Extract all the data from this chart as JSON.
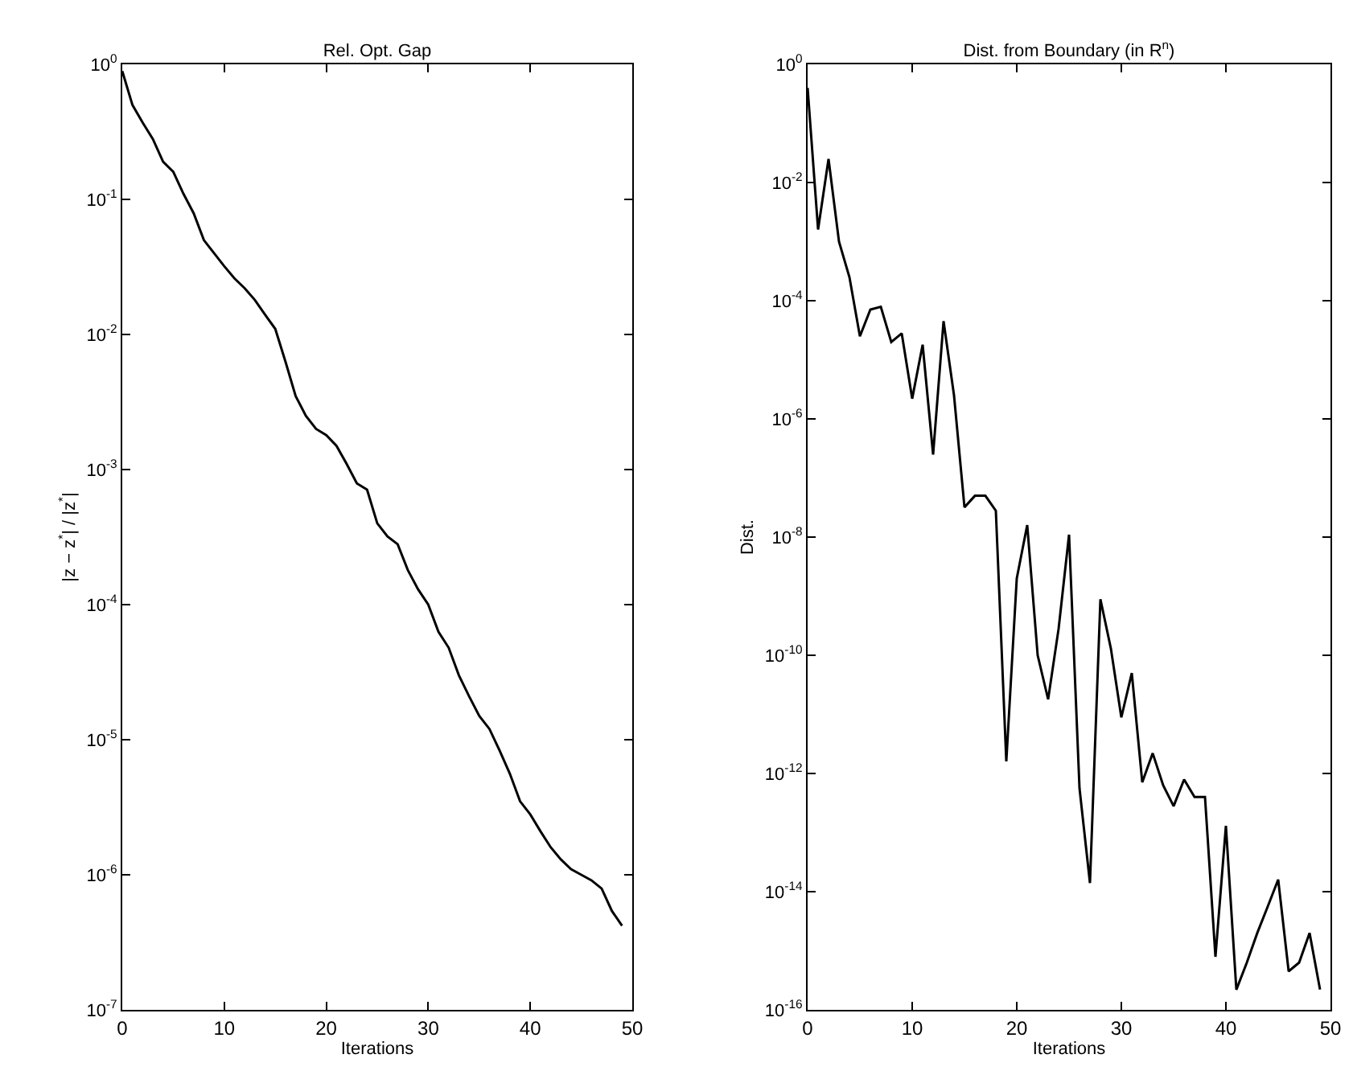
{
  "chart_data": [
    {
      "type": "line",
      "title": "Rel. Opt. Gap",
      "xlabel": "Iterations",
      "ylabel": "|z − z$^{*}$| / |z$^{*}$|",
      "log": "y",
      "grid": false,
      "marker": "none",
      "line_style": "solid",
      "x": [
        0,
        1,
        2,
        3,
        4,
        5,
        6,
        7,
        8,
        9,
        10,
        11,
        12,
        13,
        14,
        15,
        16,
        17,
        18,
        19,
        20,
        21,
        22,
        23,
        24,
        25,
        26,
        27,
        28,
        29,
        30,
        31,
        32,
        33,
        34,
        35,
        36,
        37,
        38,
        39,
        40,
        41,
        42,
        43,
        44,
        45,
        46,
        47,
        48,
        49
      ],
      "series": [
        {
          "color": "#000000",
          "values": [
            0.89,
            0.5,
            0.37,
            0.28,
            0.19,
            0.16,
            0.11,
            0.079,
            0.05,
            0.04,
            0.032,
            0.026,
            0.022,
            0.018,
            0.014,
            0.011,
            0.0063,
            0.0035,
            0.0025,
            0.002,
            0.0018,
            0.0015,
            0.0011,
            0.00079,
            0.00071,
            0.0004,
            0.00032,
            0.00028,
            0.00018,
            0.00013,
            0.0001,
            6.3e-05,
            4.8e-05,
            3e-05,
            2.1e-05,
            1.5e-05,
            1.2e-05,
            8.3e-06,
            5.6e-06,
            3.5e-06,
            2.8e-06,
            2.1e-06,
            1.6e-06,
            1.3e-06,
            1.1e-06,
            1e-06,
            9.1e-07,
            7.9e-07,
            5.4e-07,
            4.2e-07
          ]
        }
      ],
      "xlim": [
        0,
        50
      ],
      "xticks": [
        0,
        10,
        20,
        30,
        40,
        50
      ],
      "ylim": [
        1e-07,
        1
      ],
      "yticks": [
        {
          "value": 1e-07,
          "label": "10$^{-7}$"
        },
        {
          "value": 1e-06,
          "label": "10$^{-6}$"
        },
        {
          "value": 1e-05,
          "label": "10$^{-5}$"
        },
        {
          "value": 0.0001,
          "label": "10$^{-4}$"
        },
        {
          "value": 0.001,
          "label": "10$^{-3}$"
        },
        {
          "value": 0.01,
          "label": "10$^{-2}$"
        },
        {
          "value": 0.1,
          "label": "10$^{-1}$"
        },
        {
          "value": 1,
          "label": "10$^{0}$"
        }
      ]
    },
    {
      "type": "line",
      "title": "Dist. from Boundary (in R$^{n}$)",
      "xlabel": "Iterations",
      "ylabel": "Dist.",
      "log": "y",
      "grid": false,
      "marker": "none",
      "line_style": "solid",
      "x": [
        0,
        1,
        2,
        3,
        4,
        5,
        6,
        7,
        8,
        9,
        10,
        11,
        12,
        13,
        14,
        15,
        16,
        17,
        18,
        19,
        20,
        21,
        22,
        23,
        24,
        25,
        26,
        27,
        28,
        29,
        30,
        31,
        32,
        33,
        34,
        35,
        36,
        37,
        38,
        39,
        40,
        41,
        42,
        43,
        44,
        45,
        46,
        47,
        48,
        49
      ],
      "series": [
        {
          "color": "#000000",
          "values": [
            0.4,
            0.0016,
            0.025,
            0.001,
            0.00025,
            2.5e-05,
            7.1e-05,
            7.9e-05,
            2e-05,
            2.8e-05,
            2.2e-06,
            1.8e-05,
            2.5e-07,
            4.5e-05,
            2.5e-06,
            3.2e-08,
            5e-08,
            5e-08,
            2.8e-08,
            1.6e-12,
            2e-09,
            1.6e-08,
            1e-10,
            1.8e-11,
            2.8e-10,
            1.1e-08,
            5.6e-13,
            1.4e-14,
            8.9e-10,
            1.3e-10,
            8.9e-12,
            5e-11,
            7.1e-13,
            2.2e-12,
            6.3e-13,
            2.8e-13,
            7.9e-13,
            4e-13,
            4e-13,
            7.9e-16,
            1.3e-13,
            2.2e-16,
            6.3e-16,
            2e-15,
            5.6e-15,
            1.6e-14,
            4.5e-16,
            6.3e-16,
            2e-15,
            2.2e-16
          ]
        }
      ],
      "xlim": [
        0,
        50
      ],
      "xticks": [
        0,
        10,
        20,
        30,
        40,
        50
      ],
      "ylim": [
        1e-16,
        1
      ],
      "yticks": [
        {
          "value": 1e-16,
          "label": "10$^{-16}$"
        },
        {
          "value": 1e-14,
          "label": "10$^{-14}$"
        },
        {
          "value": 1e-12,
          "label": "10$^{-12}$"
        },
        {
          "value": 1e-10,
          "label": "10$^{-10}$"
        },
        {
          "value": 1e-08,
          "label": "10$^{-8}$"
        },
        {
          "value": 1e-06,
          "label": "10$^{-6}$"
        },
        {
          "value": 0.0001,
          "label": "10$^{-4}$"
        },
        {
          "value": 0.01,
          "label": "10$^{-2}$"
        },
        {
          "value": 1,
          "label": "10$^{0}$"
        }
      ]
    }
  ]
}
